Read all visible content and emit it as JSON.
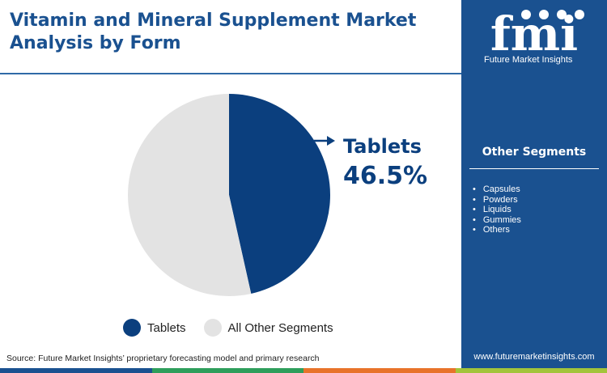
{
  "title": "Vitamin and Mineral Supplement Market Analysis by Form",
  "chart_data": {
    "type": "pie",
    "slices": [
      {
        "label": "Tablets",
        "value": 46.5,
        "color": "#0b3f7e"
      },
      {
        "label": "All Other Segments",
        "value": 53.5,
        "color": "#e3e3e3"
      }
    ],
    "callout": {
      "label": "Tablets",
      "value": "46.5%"
    },
    "legend_position": "bottom"
  },
  "legend": [
    {
      "label": "Tablets",
      "color": "#0b3f7e"
    },
    {
      "label": "All Other Segments",
      "color": "#e3e3e3"
    }
  ],
  "source": "Source: Future Market Insights’ proprietary forecasting model and primary research",
  "sidebar": {
    "logo_text": "fmi",
    "logo_subtitle": "Future Market Insights",
    "segments_title": "Other Segments",
    "segments": [
      "Capsules",
      "Powders",
      "Liquids",
      "Gummies",
      "Others"
    ],
    "website": "www.futuremarketinsights.com"
  },
  "colors": {
    "brand": "#1a5190",
    "accent": "#0b3f7e",
    "other": "#e3e3e3"
  },
  "bottom_bar_colors": [
    "#1a5190",
    "#2e9e5b",
    "#e8732a",
    "#a3c43b"
  ]
}
